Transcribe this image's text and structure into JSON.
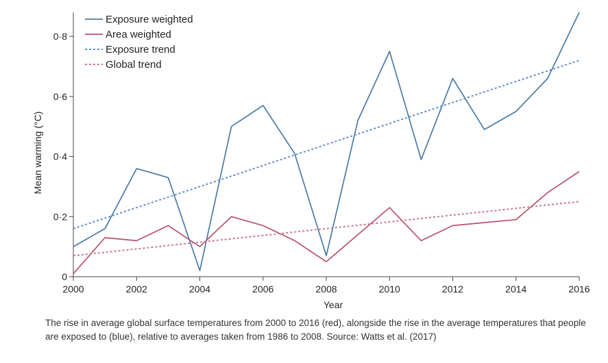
{
  "chart_data": {
    "type": "line",
    "xlabel": "Year",
    "ylabel": "Mean warming (°C)",
    "xlim": [
      2000,
      2016
    ],
    "ylim": [
      0,
      0.88
    ],
    "x_ticks": [
      "2000",
      "2002",
      "2004",
      "2006",
      "2008",
      "2010",
      "2012",
      "2014",
      "2016"
    ],
    "y_ticks": [
      "0",
      "0·2",
      "0·4",
      "0·6",
      "0·8"
    ],
    "legend_position": "top-left",
    "x": [
      2000,
      2001,
      2002,
      2003,
      2004,
      2005,
      2006,
      2007,
      2008,
      2009,
      2010,
      2011,
      2012,
      2013,
      2014,
      2015,
      2016
    ],
    "series": [
      {
        "name": "Exposure weighted",
        "style": "solid",
        "color": "#4a7aa5",
        "values": [
          0.1,
          0.16,
          0.36,
          0.33,
          0.02,
          0.5,
          0.57,
          0.41,
          0.07,
          0.52,
          0.75,
          0.39,
          0.66,
          0.49,
          0.55,
          0.66,
          0.88
        ]
      },
      {
        "name": "Area weighted",
        "style": "solid",
        "color": "#b95068",
        "values": [
          0.01,
          0.13,
          0.12,
          0.17,
          0.1,
          0.2,
          0.17,
          0.12,
          0.05,
          0.14,
          0.23,
          0.12,
          0.17,
          0.18,
          0.19,
          0.28,
          0.35
        ]
      },
      {
        "name": "Exposure trend",
        "style": "dotted",
        "color": "#5e8fc2",
        "values": [
          0.16,
          null,
          null,
          null,
          null,
          null,
          null,
          null,
          null,
          null,
          null,
          null,
          null,
          null,
          null,
          null,
          0.72
        ]
      },
      {
        "name": "Global trend",
        "style": "dotted",
        "color": "#c97a8e",
        "values": [
          0.07,
          null,
          null,
          null,
          null,
          null,
          null,
          null,
          null,
          null,
          null,
          null,
          null,
          null,
          null,
          null,
          0.25
        ]
      }
    ]
  },
  "caption": "The rise in average global surface temperatures from 2000 to 2016 (red), alongside the rise in the average temperatures that people are exposed to (blue), relative to averages taken from 1986 to 2008. Source: Watts et al. (2017)"
}
